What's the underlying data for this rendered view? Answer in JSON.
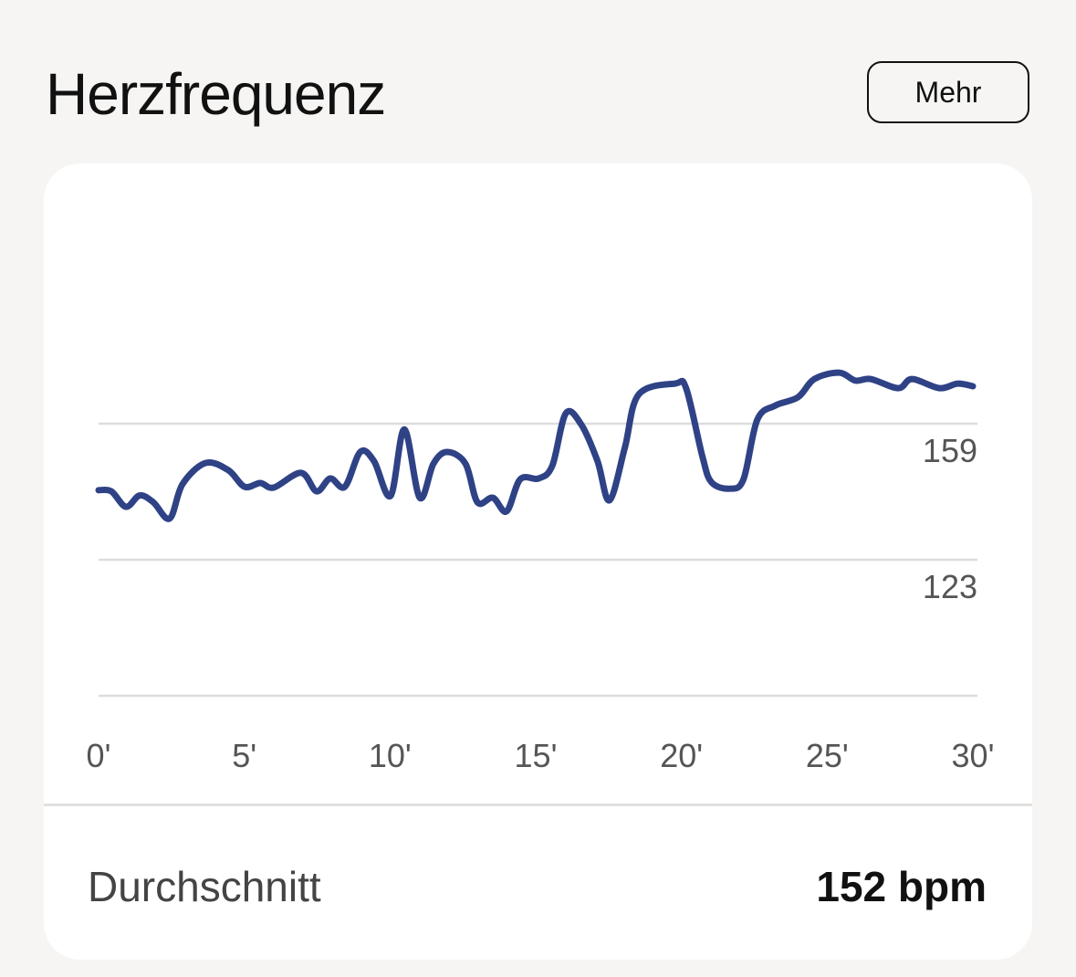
{
  "header": {
    "title": "Herzfrequenz",
    "more_label": "Mehr"
  },
  "summary": {
    "label": "Durchschnitt",
    "value": "152 bpm"
  },
  "colors": {
    "line": "#2f4286",
    "grid": "#dddddd",
    "background": "#f6f5f3",
    "card": "#ffffff"
  },
  "chart_data": {
    "type": "line",
    "title": "Herzfrequenz",
    "xlabel": "",
    "ylabel": "",
    "xlim": [
      0,
      30
    ],
    "ylim": [
      87,
      175
    ],
    "grid": true,
    "x_ticks": [
      {
        "value": 0,
        "label": "0'"
      },
      {
        "value": 5,
        "label": "5'"
      },
      {
        "value": 10,
        "label": "10'"
      },
      {
        "value": 15,
        "label": "15'"
      },
      {
        "value": 20,
        "label": "20'"
      },
      {
        "value": 25,
        "label": "25'"
      },
      {
        "value": 30,
        "label": "30'"
      }
    ],
    "y_gridlines": [
      {
        "value": 159,
        "label": "159"
      },
      {
        "value": 123,
        "label": "123"
      },
      {
        "value": 87,
        "label": ""
      }
    ],
    "series": [
      {
        "x": [
          0,
          0.44,
          0.94,
          1.41,
          1.88,
          2.44,
          2.88,
          3.67,
          4.45,
          5.01,
          5.55,
          6.01,
          6.95,
          7.48,
          7.95,
          8.45,
          8.98,
          9.45,
          10.02,
          10.49,
          11.02,
          11.49,
          11.96,
          12.59,
          13.0,
          13.53,
          14.0,
          14.47,
          15.1,
          15.57,
          16.03,
          16.56,
          17.12,
          17.53,
          18.06,
          18.53,
          19.78,
          20.16,
          20.72,
          21.03,
          21.66,
          22.13,
          22.6,
          23.22,
          24.0,
          24.56,
          25.41,
          25.97,
          26.5,
          27.44,
          27.91,
          28.85,
          29.48,
          30
        ],
        "y": [
          141.4,
          141.1,
          137,
          140,
          138.2,
          133.9,
          143,
          148.6,
          146.7,
          142.3,
          143.3,
          142.1,
          146,
          141.1,
          144.5,
          142.3,
          151.5,
          149.1,
          139.9,
          157.5,
          139.4,
          148.4,
          151.5,
          148.4,
          138.2,
          139.4,
          135.8,
          144.3,
          144.5,
          147.9,
          161.7,
          158.8,
          149.1,
          138.7,
          152.7,
          166.7,
          169.6,
          168.4,
          150.3,
          143.5,
          141.8,
          144.3,
          160,
          163.8,
          166,
          170.8,
          172.5,
          170.4,
          170.8,
          168.4,
          170.8,
          168.4,
          169.6,
          168.9
        ]
      }
    ]
  }
}
